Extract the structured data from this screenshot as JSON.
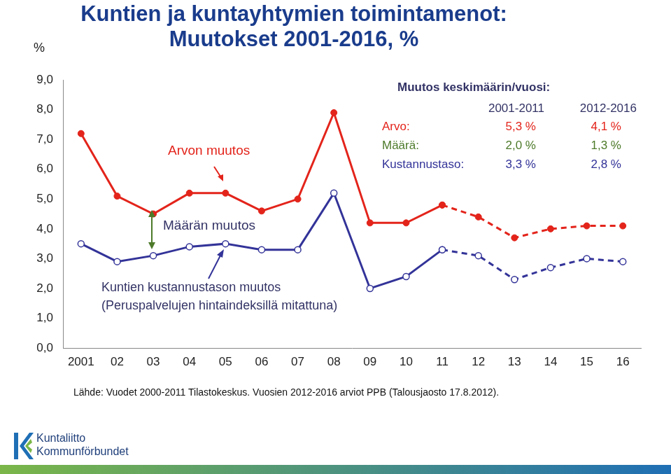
{
  "chart_data": {
    "type": "line",
    "title": [
      "Kuntien ja kuntayhtymien toimintamenot:",
      "Muutokset 2001-2016, %"
    ],
    "y_label": "%",
    "categories": [
      "2001",
      "02",
      "03",
      "04",
      "05",
      "06",
      "07",
      "08",
      "09",
      "10",
      "11",
      "12",
      "13",
      "14",
      "15",
      "16"
    ],
    "series": [
      {
        "name": "Arvon muutos",
        "color": "#e3241b",
        "marker": "circle",
        "line_style": "solid",
        "values": [
          7.2,
          5.1,
          4.5,
          5.2,
          5.2,
          4.6,
          5.0,
          7.9,
          4.2,
          4.2,
          4.8,
          null,
          null,
          null,
          null,
          null
        ]
      },
      {
        "name": "Arvon muutos",
        "color": "#e3241b",
        "marker": "circle",
        "line_style": "dashed",
        "values": [
          null,
          null,
          null,
          null,
          null,
          null,
          null,
          null,
          null,
          null,
          4.8,
          4.4,
          3.7,
          4.0,
          4.1,
          4.1
        ]
      },
      {
        "name": "Kuntien kustannustason muutos",
        "color": "#333399",
        "marker": "circle_open",
        "line_style": "solid",
        "values": [
          3.5,
          2.9,
          3.1,
          3.4,
          3.5,
          3.3,
          3.3,
          5.2,
          2.0,
          2.4,
          3.3,
          null,
          null,
          null,
          null,
          null
        ]
      },
      {
        "name": "Kuntien kustannustason muutos",
        "color": "#333399",
        "marker": "circle_open",
        "line_style": "dashed",
        "values": [
          null,
          null,
          null,
          null,
          null,
          null,
          null,
          null,
          null,
          null,
          3.3,
          3.1,
          2.3,
          2.7,
          3.0,
          2.9
        ]
      }
    ],
    "ylim": [
      0,
      9
    ],
    "yticks": [
      {
        "value": 0,
        "label": "0,0"
      },
      {
        "value": 1,
        "label": "1,0"
      },
      {
        "value": 2,
        "label": "2,0"
      },
      {
        "value": 3,
        "label": "3,0"
      },
      {
        "value": 4,
        "label": "4,0"
      },
      {
        "value": 5,
        "label": "5,0"
      },
      {
        "value": 6,
        "label": "6,0"
      },
      {
        "value": 7,
        "label": "7,0"
      },
      {
        "value": 8,
        "label": "8,0"
      },
      {
        "value": 9,
        "label": "9,0"
      }
    ],
    "grid": false,
    "annotations": {
      "value_change": "Arvon muutos",
      "volume_change": "Määrän muutos",
      "cost_change": [
        "Kuntien kustannustason muutos",
        "(Peruspalvelujen hintaindeksillä mitattuna)"
      ]
    },
    "summary_table": {
      "title": "Muutos keskimäärin/vuosi:",
      "columns": [
        "2001-2011",
        "2012-2016"
      ],
      "rows": [
        {
          "label": "Arvo:",
          "values": [
            "5,3 %",
            "4,1 %"
          ]
        },
        {
          "label": "Määrä:",
          "values": [
            "2,0 %",
            "1,3 %"
          ]
        },
        {
          "label": "Kustannustaso:",
          "values": [
            "3,3 %",
            "2,8 %"
          ]
        }
      ]
    },
    "source": "Lähde: Vuodet 2000-2011 Tilastokeskus. Vuosien 2012-2016 arviot PPB (Talousjaosto 17.8.2012).",
    "logo": [
      "Kuntaliitto",
      "Kommunförbundet"
    ]
  }
}
